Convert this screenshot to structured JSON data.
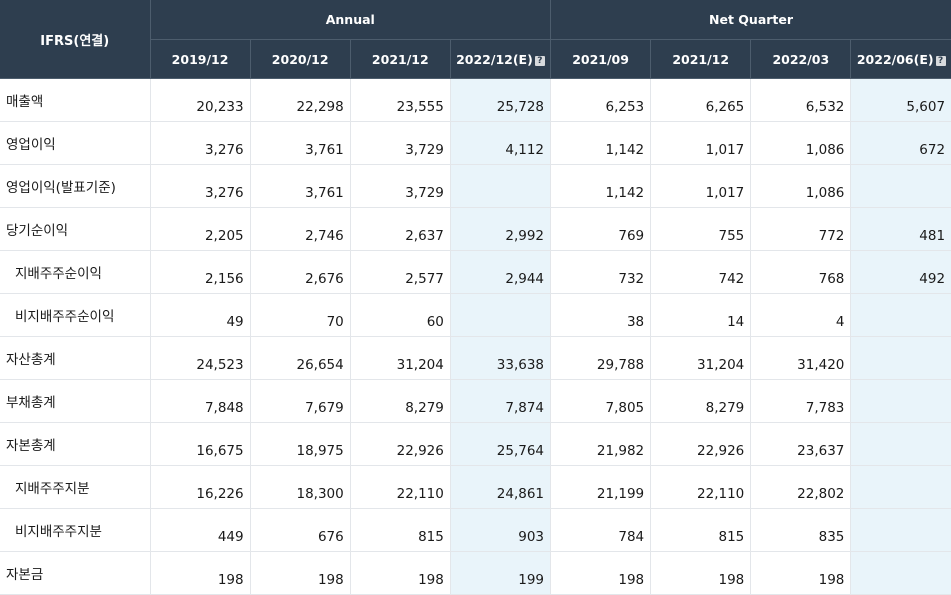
{
  "header": {
    "label": "IFRS(연결)",
    "group_annual": "Annual",
    "group_quarter": "Net Quarter",
    "periods": [
      "2019/12",
      "2020/12",
      "2021/12",
      "2022/12(E)",
      "2021/09",
      "2021/12",
      "2022/03",
      "2022/06(E)"
    ],
    "estimate_icon": "?"
  },
  "rows": [
    {
      "label": "매출액",
      "values": [
        "20,233",
        "22,298",
        "23,555",
        "25,728",
        "6,253",
        "6,265",
        "6,532",
        "5,607"
      ]
    },
    {
      "label": "영업이익",
      "values": [
        "3,276",
        "3,761",
        "3,729",
        "4,112",
        "1,142",
        "1,017",
        "1,086",
        "672"
      ]
    },
    {
      "label": "영업이익(발표기준)",
      "values": [
        "3,276",
        "3,761",
        "3,729",
        "",
        "1,142",
        "1,017",
        "1,086",
        ""
      ]
    },
    {
      "label": "당기순이익",
      "values": [
        "2,205",
        "2,746",
        "2,637",
        "2,992",
        "769",
        "755",
        "772",
        "481"
      ]
    },
    {
      "label": "지배주주순이익",
      "values": [
        "2,156",
        "2,676",
        "2,577",
        "2,944",
        "732",
        "742",
        "768",
        "492"
      ]
    },
    {
      "label": "비지배주주순이익",
      "values": [
        "49",
        "70",
        "60",
        "",
        "38",
        "14",
        "4",
        ""
      ]
    },
    {
      "label": "자산총계",
      "values": [
        "24,523",
        "26,654",
        "31,204",
        "33,638",
        "29,788",
        "31,204",
        "31,420",
        ""
      ]
    },
    {
      "label": "부채총계",
      "values": [
        "7,848",
        "7,679",
        "8,279",
        "7,874",
        "7,805",
        "8,279",
        "7,783",
        ""
      ]
    },
    {
      "label": "자본총계",
      "values": [
        "16,675",
        "18,975",
        "22,926",
        "25,764",
        "21,982",
        "22,926",
        "23,637",
        ""
      ]
    },
    {
      "label": "지배주주지분",
      "values": [
        "16,226",
        "18,300",
        "22,110",
        "24,861",
        "21,199",
        "22,110",
        "22,802",
        ""
      ]
    },
    {
      "label": "비지배주주지분",
      "values": [
        "449",
        "676",
        "815",
        "903",
        "784",
        "815",
        "835",
        ""
      ]
    },
    {
      "label": "자본금",
      "values": [
        "198",
        "198",
        "198",
        "199",
        "198",
        "198",
        "198",
        ""
      ]
    }
  ]
}
